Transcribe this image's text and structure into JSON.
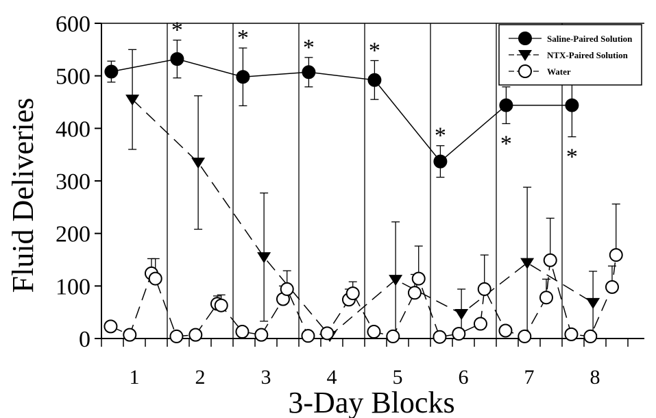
{
  "chart_data": {
    "type": "line",
    "xlabel": "3-Day Blocks",
    "ylabel": "Fluid Deliveries",
    "ylim": [
      0,
      600
    ],
    "yticks": [
      "0",
      "100",
      "200",
      "300",
      "400",
      "500",
      "600"
    ],
    "xlim": [
      0.5,
      8.75
    ],
    "block_labels": [
      "1",
      "2",
      "3",
      "4",
      "5",
      "6",
      "7",
      "8"
    ],
    "block_boundaries": [
      1.5,
      2.5,
      3.5,
      4.5,
      5.5,
      6.5,
      7.5
    ],
    "legend": {
      "position": "top-right",
      "entries": [
        "Saline-Paired Solution",
        "NTX-Paired Solution",
        "Water"
      ]
    },
    "significance_marker": "*",
    "series": [
      {
        "name": "Saline-Paired Solution",
        "marker": "filled-circle",
        "line": "solid",
        "color": "#000000",
        "x": [
          0.65,
          1.65,
          2.65,
          3.65,
          4.65,
          5.65,
          6.65,
          7.65
        ],
        "y": [
          508,
          532,
          498,
          507,
          492,
          337,
          444,
          444
        ],
        "err": [
          20,
          36,
          55,
          28,
          37,
          30,
          35,
          60
        ],
        "sig": [
          "",
          "above",
          "above",
          "above",
          "above",
          "above",
          "below",
          "below"
        ]
      },
      {
        "name": "NTX-Paired Solution",
        "marker": "filled-triangle-down",
        "line": "dashed",
        "color": "#000000",
        "x": [
          0.97,
          1.97,
          2.97,
          3.97,
          4.97,
          5.97,
          6.97,
          7.97
        ],
        "y": [
          455,
          335,
          155,
          5,
          112,
          47,
          144,
          68
        ],
        "err": [
          95,
          127,
          122,
          0,
          110,
          47,
          144,
          60
        ]
      },
      {
        "name": "Water",
        "marker": "open-circle",
        "line": "dashed",
        "color": "#000000",
        "x": [
          0.64,
          0.93,
          1.26,
          1.32,
          1.64,
          1.93,
          2.26,
          2.32,
          2.64,
          2.93,
          3.26,
          3.32,
          3.64,
          3.93,
          4.26,
          4.32,
          4.64,
          4.93,
          5.26,
          5.32,
          5.64,
          5.93,
          6.26,
          6.32,
          6.64,
          6.93,
          7.26,
          7.32,
          7.64,
          7.93,
          8.26,
          8.32
        ],
        "y": [
          23,
          7,
          124,
          114,
          4,
          7,
          66,
          63,
          13,
          7,
          75,
          94,
          5,
          10,
          74,
          86,
          13,
          4,
          87,
          114,
          3,
          9,
          28,
          94,
          15,
          4,
          78,
          149,
          8,
          4,
          98,
          159
        ],
        "err": [
          0,
          0,
          28,
          38,
          0,
          0,
          15,
          20,
          0,
          0,
          25,
          35,
          0,
          0,
          20,
          22,
          0,
          0,
          35,
          62,
          0,
          0,
          0,
          65,
          0,
          0,
          35,
          80,
          0,
          0,
          40,
          97
        ]
      }
    ]
  }
}
